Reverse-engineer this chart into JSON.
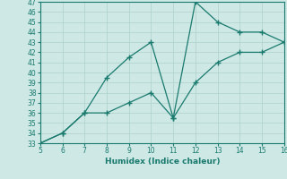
{
  "line1_x": [
    5,
    6,
    7,
    8,
    9,
    10,
    11,
    12,
    13,
    14,
    15,
    16
  ],
  "line1_y": [
    33,
    34,
    36,
    36,
    37,
    38,
    35.5,
    39,
    41,
    42,
    42,
    43
  ],
  "line2_x": [
    5,
    6,
    7,
    8,
    9,
    10,
    11,
    12,
    13,
    14,
    15,
    16
  ],
  "line2_y": [
    33,
    34,
    36,
    39.5,
    41.5,
    43,
    35.5,
    47,
    45,
    44,
    44,
    43
  ],
  "color": "#1a7a6e",
  "bg_color": "#cde8e5",
  "grid_color": "#aed0cc",
  "xlabel": "Humidex (Indice chaleur)",
  "xlim": [
    5,
    16
  ],
  "ylim": [
    33,
    47
  ],
  "xticks": [
    5,
    6,
    7,
    8,
    9,
    10,
    11,
    12,
    13,
    14,
    15,
    16
  ],
  "yticks": [
    33,
    34,
    35,
    36,
    37,
    38,
    39,
    40,
    41,
    42,
    43,
    44,
    45,
    46,
    47
  ]
}
